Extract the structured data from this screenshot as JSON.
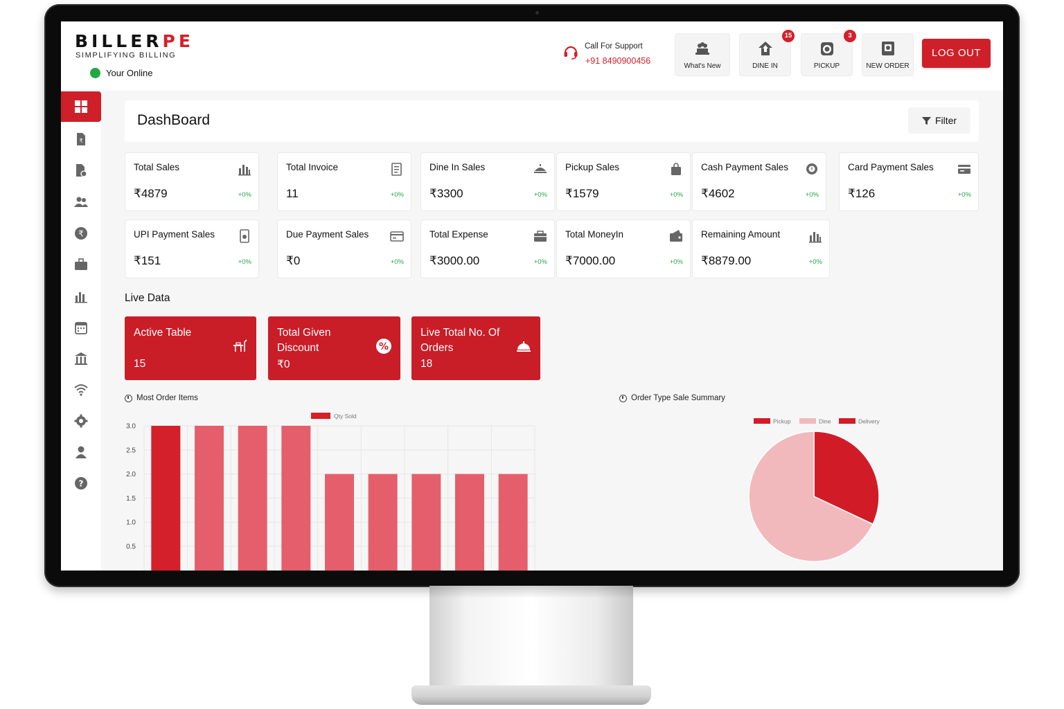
{
  "brand": {
    "logo_main": "BILLER",
    "logo_accent": "PE",
    "tagline": "SIMPLIFYING BILLING",
    "status": "Your Online",
    "accent_color": "#d3202a",
    "online_color": "#22a745"
  },
  "support": {
    "label": "Call For Support",
    "phone": "+91 8490900456",
    "icon": "headset-icon"
  },
  "header_buttons": [
    {
      "label": "What's New",
      "icon": "chef-hat-icon"
    },
    {
      "label": "DINE IN",
      "icon": "home-up-icon",
      "badge": "15"
    },
    {
      "label": "PICKUP",
      "icon": "pickup-bag-icon",
      "badge": "3"
    },
    {
      "label": "NEW ORDER",
      "icon": "new-order-icon"
    }
  ],
  "logout_label": "LOG OUT",
  "sidebar": [
    {
      "icon": "dashboard-grid-icon",
      "active": true
    },
    {
      "icon": "invoice-icon"
    },
    {
      "icon": "document-icon"
    },
    {
      "icon": "users-icon"
    },
    {
      "icon": "rupee-icon"
    },
    {
      "icon": "briefcase-icon"
    },
    {
      "icon": "bar-chart-icon"
    },
    {
      "icon": "calendar-icon"
    },
    {
      "icon": "building-icon"
    },
    {
      "icon": "wifi-icon"
    },
    {
      "icon": "gear-icon"
    },
    {
      "icon": "user-icon"
    },
    {
      "icon": "help-icon"
    }
  ],
  "page_title": "DashBoard",
  "filter_label": "Filter",
  "stats": [
    {
      "label": "Total Sales",
      "value": "₹4879",
      "change": "+0%",
      "icon": "bar-chart-icon"
    },
    {
      "label": "Total Invoice",
      "value": "11",
      "change": "+0%",
      "icon": "invoice-icon"
    },
    {
      "label": "Dine In Sales",
      "value": "₹3300",
      "change": "+0%",
      "icon": "dine-icon"
    },
    {
      "label": "Pickup Sales",
      "value": "₹1579",
      "change": "+0%",
      "icon": "shopping-bag-icon"
    },
    {
      "label": "Cash Payment Sales",
      "value": "₹4602",
      "change": "+0%",
      "icon": "cash-icon"
    },
    {
      "label": "Card Payment Sales",
      "value": "₹126",
      "change": "+0%",
      "icon": "card-icon"
    },
    {
      "label": "UPI Payment Sales",
      "value": "₹151",
      "change": "+0%",
      "icon": "upi-icon"
    },
    {
      "label": "Due Payment Sales",
      "value": "₹0",
      "change": "+0%",
      "icon": "wallet-card-icon"
    },
    {
      "label": "Total Expense",
      "value": "₹3000.00",
      "change": "+0%",
      "icon": "expense-wallet-icon"
    },
    {
      "label": "Total MoneyIn",
      "value": "₹7000.00",
      "change": "+0%",
      "icon": "money-in-wallet-icon"
    },
    {
      "label": "Remaining Amount",
      "value": "₹8879.00",
      "change": "+0%",
      "icon": "bar-chart-icon"
    }
  ],
  "live_data": {
    "title": "Live Data",
    "cards": [
      {
        "label_line1": "Active Table",
        "label_line2": "",
        "value": "15",
        "icon": "table-icon"
      },
      {
        "label_line1": "Total Given",
        "label_line2": "Discount",
        "value": "₹0",
        "icon": "percent-icon"
      },
      {
        "label_line1": "Live Total No. Of",
        "label_line2": "Orders",
        "value": "18",
        "icon": "bell-icon"
      }
    ]
  },
  "most_order_items_title": "Most Order Items",
  "order_type_title": "Order Type Sale Summary",
  "chart_data": [
    {
      "type": "bar",
      "title": "Most Order Items",
      "series": [
        {
          "name": "Qty Sold",
          "values": [
            3,
            3,
            3,
            3,
            2,
            2,
            2,
            2,
            2
          ]
        }
      ],
      "ylim": [
        0,
        3
      ],
      "yticks": [
        "0.5",
        "1.0",
        "1.5",
        "2.0",
        "2.5",
        "3.0"
      ],
      "grid": true,
      "legend": "top-center",
      "colors": {
        "first_bar": "#d3202a",
        "other_bars": "#e45f6b",
        "grid": "#e6e6e6"
      }
    },
    {
      "type": "pie",
      "title": "Order Type Sale Summary",
      "labels": [
        "Pickup",
        "Dine",
        "Delivery"
      ],
      "values": [
        32,
        68,
        0
      ],
      "colors": [
        "#d11c28",
        "#f2b9bd",
        "#d11c28"
      ],
      "legend": "top-center"
    }
  ]
}
